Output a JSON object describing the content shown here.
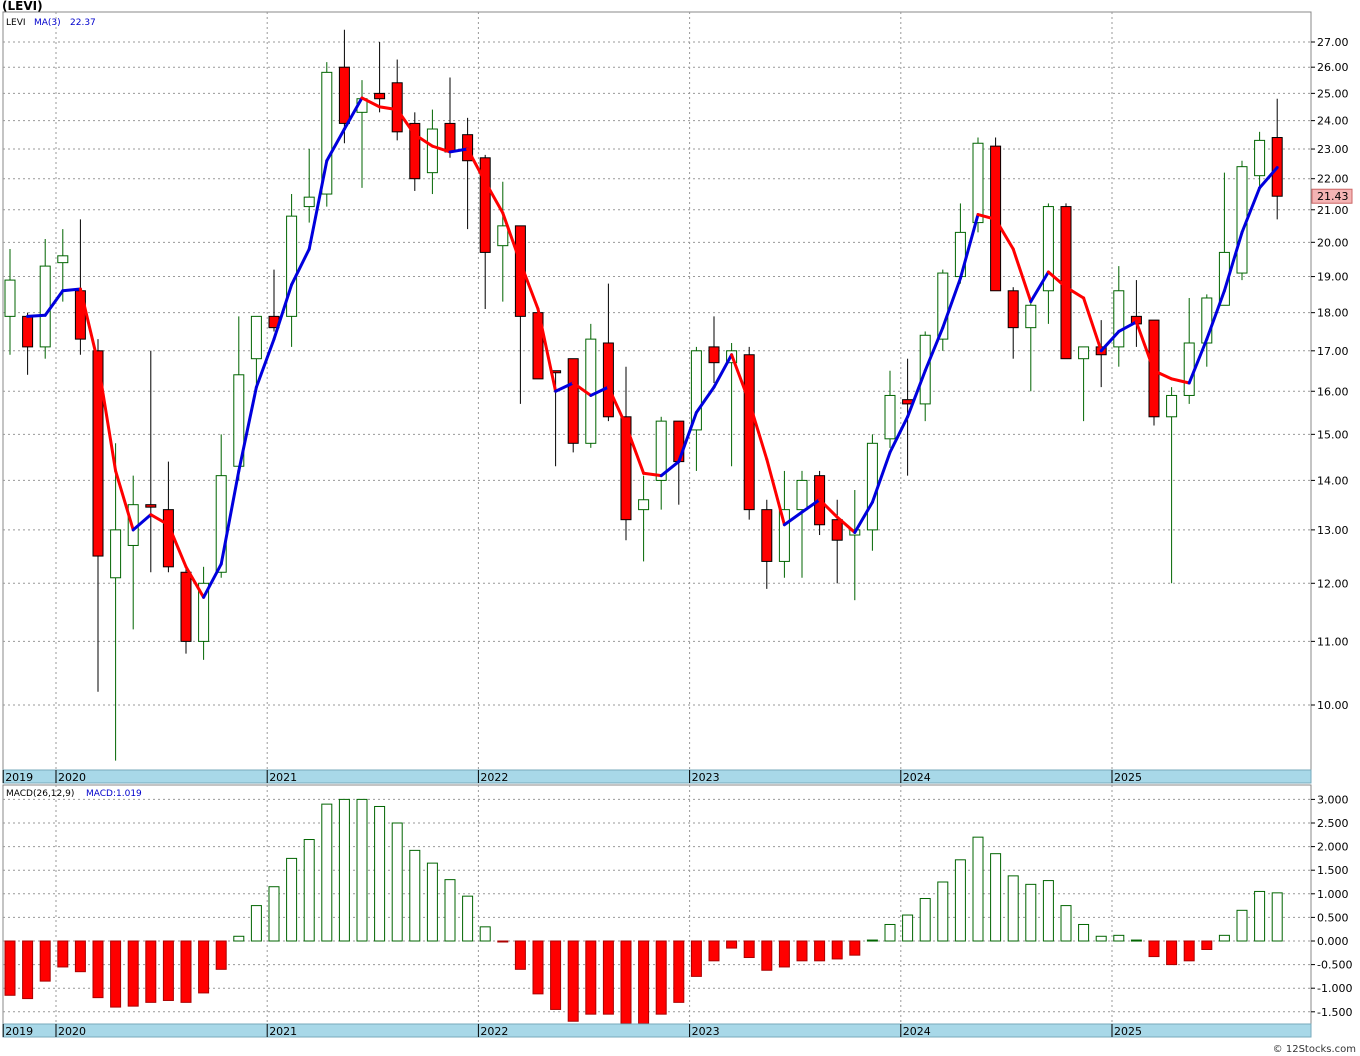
{
  "title": "(LEVI)",
  "credit": "© 12Stocks.com",
  "colors": {
    "up_candle_border": "#006400",
    "down_candle_fill": "#ff0000",
    "ma_up": "#0000dd",
    "ma_down": "#ff0000",
    "macd_up": "#006400",
    "macd_down": "#ff0000",
    "axis_band": "#a8d8e8",
    "grid": "#999999",
    "last_price_box": "#f4b4b4"
  },
  "chart_data": [
    {
      "type": "candlestick",
      "legend": {
        "symbol": "LEVI",
        "ma_label": "MA(3)",
        "ma_value": "22.37"
      },
      "last_price": "21.43",
      "y_ticks": [
        "10.00",
        "11.00",
        "12.00",
        "13.00",
        "14.00",
        "15.00",
        "16.00",
        "17.00",
        "18.00",
        "19.00",
        "20.00",
        "21.00",
        "22.00",
        "23.00",
        "24.00",
        "25.00",
        "26.00",
        "27.00"
      ],
      "x_labels": [
        "2019",
        "2020",
        "2021",
        "2022",
        "2023",
        "2024",
        "2025"
      ],
      "grid": true,
      "scale": "log",
      "ohlc": [
        {
          "o": 17.9,
          "h": 19.8,
          "l": 16.9,
          "c": 18.9
        },
        {
          "o": 17.9,
          "h": 18.0,
          "l": 16.4,
          "c": 17.1
        },
        {
          "o": 17.1,
          "h": 20.1,
          "l": 16.8,
          "c": 19.3
        },
        {
          "o": 19.4,
          "h": 20.4,
          "l": 18.3,
          "c": 19.6
        },
        {
          "o": 18.6,
          "h": 20.7,
          "l": 16.9,
          "c": 17.3
        },
        {
          "o": 17.0,
          "h": 17.3,
          "l": 10.2,
          "c": 12.5
        },
        {
          "o": 12.1,
          "h": 14.8,
          "l": 9.2,
          "c": 13.0
        },
        {
          "o": 12.7,
          "h": 14.1,
          "l": 11.2,
          "c": 13.5
        },
        {
          "o": 13.5,
          "h": 17.0,
          "l": 12.2,
          "c": 13.45
        },
        {
          "o": 13.4,
          "h": 14.4,
          "l": 12.2,
          "c": 12.3
        },
        {
          "o": 12.2,
          "h": 12.3,
          "l": 10.8,
          "c": 11.0
        },
        {
          "o": 11.0,
          "h": 12.3,
          "l": 10.7,
          "c": 12.0
        },
        {
          "o": 12.2,
          "h": 15.0,
          "l": 12.1,
          "c": 14.1
        },
        {
          "o": 14.3,
          "h": 17.9,
          "l": 14.0,
          "c": 16.4
        },
        {
          "o": 16.8,
          "h": 17.9,
          "l": 16.1,
          "c": 17.9
        },
        {
          "o": 17.9,
          "h": 19.2,
          "l": 17.5,
          "c": 17.6
        },
        {
          "o": 17.9,
          "h": 21.5,
          "l": 17.1,
          "c": 20.8
        },
        {
          "o": 21.1,
          "h": 23.0,
          "l": 20.6,
          "c": 21.4
        },
        {
          "o": 21.5,
          "h": 26.2,
          "l": 21.1,
          "c": 25.8
        },
        {
          "o": 26.0,
          "h": 27.5,
          "l": 23.2,
          "c": 23.9
        },
        {
          "o": 24.3,
          "h": 25.5,
          "l": 21.7,
          "c": 24.8
        },
        {
          "o": 25.0,
          "h": 27.0,
          "l": 24.3,
          "c": 24.8
        },
        {
          "o": 25.4,
          "h": 26.3,
          "l": 23.3,
          "c": 23.6
        },
        {
          "o": 23.9,
          "h": 24.3,
          "l": 21.6,
          "c": 22.0
        },
        {
          "o": 22.2,
          "h": 24.4,
          "l": 21.5,
          "c": 23.7
        },
        {
          "o": 23.9,
          "h": 25.6,
          "l": 22.7,
          "c": 22.9
        },
        {
          "o": 23.5,
          "h": 24.1,
          "l": 20.4,
          "c": 22.6
        },
        {
          "o": 22.7,
          "h": 22.8,
          "l": 18.1,
          "c": 19.7
        },
        {
          "o": 19.9,
          "h": 21.9,
          "l": 18.3,
          "c": 20.5
        },
        {
          "o": 20.5,
          "h": 20.5,
          "l": 15.7,
          "c": 17.9
        },
        {
          "o": 18.0,
          "h": 18.0,
          "l": 16.3,
          "c": 16.3
        },
        {
          "o": 16.5,
          "h": 16.5,
          "l": 14.3,
          "c": 16.45
        },
        {
          "o": 16.8,
          "h": 16.8,
          "l": 14.6,
          "c": 14.8
        },
        {
          "o": 14.8,
          "h": 17.7,
          "l": 14.7,
          "c": 17.3
        },
        {
          "o": 17.2,
          "h": 18.8,
          "l": 15.3,
          "c": 15.4
        },
        {
          "o": 15.4,
          "h": 16.6,
          "l": 12.8,
          "c": 13.2
        },
        {
          "o": 13.4,
          "h": 14.1,
          "l": 12.4,
          "c": 13.6
        },
        {
          "o": 14.0,
          "h": 15.4,
          "l": 13.4,
          "c": 15.3
        },
        {
          "o": 15.3,
          "h": 15.3,
          "l": 13.5,
          "c": 14.4
        },
        {
          "o": 15.1,
          "h": 17.1,
          "l": 14.2,
          "c": 17.0
        },
        {
          "o": 17.1,
          "h": 17.9,
          "l": 16.2,
          "c": 16.7
        },
        {
          "o": 16.7,
          "h": 17.2,
          "l": 14.3,
          "c": 17.0
        },
        {
          "o": 16.9,
          "h": 17.1,
          "l": 13.2,
          "c": 13.4
        },
        {
          "o": 13.4,
          "h": 13.6,
          "l": 11.9,
          "c": 12.4
        },
        {
          "o": 12.4,
          "h": 14.2,
          "l": 12.1,
          "c": 13.4
        },
        {
          "o": 13.4,
          "h": 14.2,
          "l": 12.1,
          "c": 14.0
        },
        {
          "o": 14.1,
          "h": 14.2,
          "l": 12.9,
          "c": 13.1
        },
        {
          "o": 13.2,
          "h": 13.6,
          "l": 12.0,
          "c": 12.8
        },
        {
          "o": 12.9,
          "h": 13.8,
          "l": 11.7,
          "c": 13.0
        },
        {
          "o": 13.0,
          "h": 15.0,
          "l": 12.6,
          "c": 14.8
        },
        {
          "o": 14.9,
          "h": 16.5,
          "l": 14.7,
          "c": 15.9
        },
        {
          "o": 15.8,
          "h": 16.8,
          "l": 14.1,
          "c": 15.7
        },
        {
          "o": 15.7,
          "h": 17.5,
          "l": 15.3,
          "c": 17.4
        },
        {
          "o": 17.3,
          "h": 19.2,
          "l": 17.0,
          "c": 19.1
        },
        {
          "o": 19.0,
          "h": 21.2,
          "l": 18.8,
          "c": 20.3
        },
        {
          "o": 20.6,
          "h": 23.4,
          "l": 20.3,
          "c": 23.2
        },
        {
          "o": 23.1,
          "h": 23.4,
          "l": 18.6,
          "c": 18.6
        },
        {
          "o": 18.6,
          "h": 18.7,
          "l": 16.8,
          "c": 17.6
        },
        {
          "o": 17.6,
          "h": 18.3,
          "l": 16.0,
          "c": 18.2
        },
        {
          "o": 18.6,
          "h": 21.2,
          "l": 17.7,
          "c": 21.1
        },
        {
          "o": 21.1,
          "h": 21.2,
          "l": 16.8,
          "c": 16.8
        },
        {
          "o": 16.8,
          "h": 17.1,
          "l": 15.3,
          "c": 17.1
        },
        {
          "o": 17.1,
          "h": 17.8,
          "l": 16.1,
          "c": 16.9
        },
        {
          "o": 17.1,
          "h": 19.3,
          "l": 16.6,
          "c": 18.6
        },
        {
          "o": 17.9,
          "h": 18.9,
          "l": 17.1,
          "c": 17.7
        },
        {
          "o": 17.8,
          "h": 17.8,
          "l": 15.2,
          "c": 15.4
        },
        {
          "o": 15.4,
          "h": 16.1,
          "l": 12.0,
          "c": 15.9
        },
        {
          "o": 15.9,
          "h": 18.4,
          "l": 15.7,
          "c": 17.2
        },
        {
          "o": 17.2,
          "h": 18.5,
          "l": 16.6,
          "c": 18.4
        },
        {
          "o": 18.2,
          "h": 22.2,
          "l": 18.2,
          "c": 19.7
        },
        {
          "o": 19.1,
          "h": 22.6,
          "l": 18.9,
          "c": 22.4
        },
        {
          "o": 22.1,
          "h": 23.6,
          "l": 21.6,
          "c": 23.3
        },
        {
          "o": 23.4,
          "h": 24.8,
          "l": 20.7,
          "c": 21.43
        }
      ],
      "ma3": [
        null,
        17.9,
        17.93,
        18.6,
        18.65,
        16.7,
        14.2,
        13.0,
        13.3,
        13.1,
        12.3,
        11.75,
        12.35,
        14.2,
        16.1,
        17.3,
        18.77,
        19.8,
        22.6,
        23.7,
        24.83,
        24.5,
        24.4,
        23.5,
        23.1,
        22.9,
        23.0,
        21.9,
        20.9,
        19.4,
        18.1,
        16.0,
        16.2,
        15.9,
        16.1,
        15.2,
        14.15,
        14.1,
        14.4,
        15.5,
        16.1,
        16.9,
        15.75,
        14.45,
        13.1,
        13.35,
        13.6,
        13.25,
        12.95,
        13.55,
        14.6,
        15.4,
        16.5,
        17.6,
        18.95,
        20.85,
        20.7,
        19.8,
        18.3,
        19.13,
        18.7,
        18.4,
        17.0,
        17.5,
        17.75,
        16.5,
        16.3,
        16.2,
        17.3,
        18.6,
        20.3,
        21.7,
        22.37
      ]
    },
    {
      "type": "bar",
      "legend": {
        "label": "MACD(26,12,9)",
        "value_label": "MACD:1.019"
      },
      "y_ticks": [
        "-1.500",
        "-1.000",
        "-0.500",
        "0.000",
        "0.500",
        "1.000",
        "1.500",
        "2.000",
        "2.500",
        "3.000"
      ],
      "x_labels": [
        "2019",
        "2020",
        "2021",
        "2022",
        "2023",
        "2024",
        "2025"
      ],
      "values": [
        -1.15,
        -1.22,
        -0.85,
        -0.55,
        -0.65,
        -1.2,
        -1.4,
        -1.38,
        -1.3,
        -1.26,
        -1.3,
        -1.1,
        -0.6,
        0.1,
        0.75,
        1.15,
        1.75,
        2.15,
        2.9,
        3.0,
        3.0,
        2.85,
        2.5,
        1.92,
        1.65,
        1.3,
        0.95,
        0.3,
        -0.02,
        -0.6,
        -1.12,
        -1.45,
        -1.7,
        -1.55,
        -1.55,
        -1.75,
        -1.75,
        -1.55,
        -1.3,
        -0.75,
        -0.42,
        -0.15,
        -0.35,
        -0.62,
        -0.55,
        -0.42,
        -0.42,
        -0.38,
        -0.3,
        0.02,
        0.35,
        0.55,
        0.9,
        1.25,
        1.72,
        2.2,
        1.85,
        1.38,
        1.2,
        1.28,
        0.75,
        0.35,
        0.1,
        0.12,
        0.02,
        -0.33,
        -0.5,
        -0.42,
        -0.18,
        0.12,
        0.65,
        1.05,
        1.02
      ]
    }
  ]
}
